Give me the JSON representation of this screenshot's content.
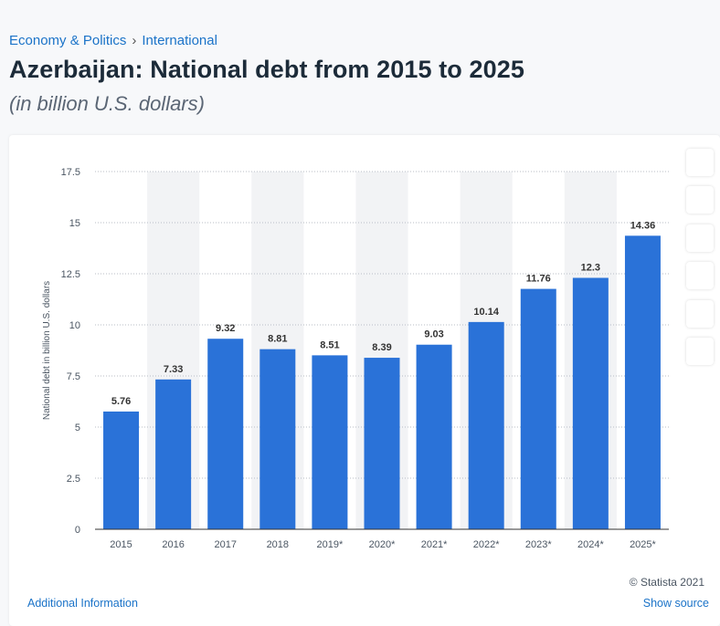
{
  "breadcrumb": {
    "items": [
      "Economy & Politics",
      "International"
    ],
    "separator": "›"
  },
  "header": {
    "title": "Azerbaijan: National debt from 2015 to 2025",
    "subtitle": "(in billion U.S. dollars)"
  },
  "side_icons": [
    "",
    "",
    "",
    "",
    "",
    ""
  ],
  "footer": {
    "credit": "© Statista 2021",
    "credit_icon": "",
    "additional_info": "Additional Information",
    "additional_info_icon": "",
    "show_source": "Show source",
    "show_source_icon": ""
  },
  "chart_data": {
    "type": "bar",
    "categories": [
      "2015",
      "2016",
      "2017",
      "2018",
      "2019*",
      "2020*",
      "2021*",
      "2022*",
      "2023*",
      "2024*",
      "2025*"
    ],
    "values": [
      5.76,
      7.33,
      9.32,
      8.81,
      8.51,
      8.39,
      9.03,
      10.14,
      11.76,
      12.3,
      14.36
    ],
    "value_labels": [
      "5.76",
      "7.33",
      "9.32",
      "8.81",
      "8.51",
      "8.39",
      "9.03",
      "10.14",
      "11.76",
      "12.3",
      "14.36"
    ],
    "ylabel": "National debt in billion U.S. dollars",
    "xlabel": "",
    "ylim": [
      0,
      17.5
    ],
    "yticks": [
      "0",
      "2.5",
      "5",
      "7.5",
      "10",
      "12.5",
      "15",
      "17.5"
    ],
    "grid": true,
    "bar_color": "#2a72d8",
    "alt_column_shading": "#f2f3f5"
  }
}
